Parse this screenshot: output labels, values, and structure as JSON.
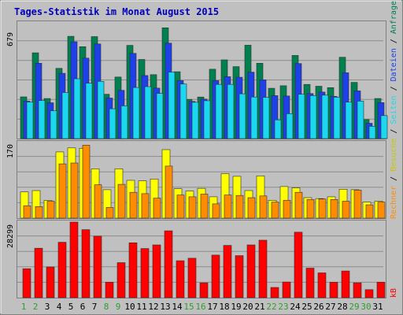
{
  "chart_data": [
    {
      "type": "bar",
      "panel": "top",
      "title": "Tages-Statistik im Monat August 2015",
      "ymax_label": "679",
      "ylim": [
        0,
        679
      ],
      "grid": true,
      "categories": [
        "1",
        "2",
        "3",
        "4",
        "5",
        "6",
        "7",
        "8",
        "9",
        "10",
        "11",
        "12",
        "13",
        "14",
        "15",
        "16",
        "17",
        "18",
        "19",
        "20",
        "21",
        "22",
        "23",
        "24",
        "25",
        "26",
        "27",
        "28",
        "29",
        "30",
        "31"
      ],
      "series": [
        {
          "name": "Anfragen",
          "color": "#007f4f",
          "values": [
            245,
            503,
            235,
            412,
            600,
            539,
            598,
            260,
            361,
            547,
            464,
            375,
            650,
            392,
            230,
            244,
            407,
            462,
            422,
            548,
            442,
            295,
            310,
            488,
            318,
            307,
            299,
            477,
            330,
            112,
            235
          ]
        },
        {
          "name": "Dateien",
          "color": "#1e40e8",
          "values": [
            220,
            442,
            210,
            383,
            568,
            472,
            555,
            238,
            283,
            500,
            370,
            296,
            560,
            340,
            218,
            232,
            340,
            363,
            360,
            390,
            345,
            252,
            250,
            440,
            264,
            273,
            248,
            386,
            280,
            90,
            211
          ]
        },
        {
          "name": "Seiten",
          "color": "#1ad8f0",
          "values": [
            215,
            223,
            163,
            270,
            351,
            325,
            336,
            175,
            192,
            300,
            305,
            265,
            390,
            320,
            213,
            222,
            318,
            318,
            263,
            244,
            242,
            110,
            146,
            260,
            252,
            255,
            243,
            214,
            220,
            72,
            135
          ]
        }
      ],
      "legend": {
        "separator": " / "
      }
    },
    {
      "type": "bar",
      "panel": "middle",
      "ymax_label": "170",
      "ylim": [
        0,
        170
      ],
      "grid": true,
      "series": [
        {
          "name": "Besuche",
          "color": "#ffff00",
          "values": [
            59,
            62,
            40,
            149,
            158,
            157,
            111,
            64,
            111,
            85,
            84,
            88,
            154,
            66,
            61,
            67,
            48,
            100,
            94,
            62,
            95,
            40,
            71,
            68,
            46,
            44,
            48,
            65,
            64,
            36,
            38
          ]
        },
        {
          "name": "Rechner",
          "color": "#ff8c00",
          "values": [
            28,
            26,
            38,
            122,
            124,
            164,
            75,
            24,
            76,
            58,
            55,
            45,
            117,
            52,
            48,
            54,
            32,
            52,
            51,
            46,
            50,
            36,
            40,
            58,
            42,
            43,
            42,
            38,
            63,
            30,
            36
          ]
        }
      ]
    },
    {
      "type": "bar",
      "panel": "bottom",
      "ymax_label": "28299",
      "ylim": [
        0,
        28299
      ],
      "grid": true,
      "series": [
        {
          "name": "kB",
          "color": "#ff0000",
          "values": [
            10860,
            18500,
            11500,
            20760,
            28299,
            25460,
            23010,
            5810,
            13130,
            20560,
            18380,
            19760,
            25030,
            13820,
            14760,
            5580,
            15940,
            19570,
            15740,
            19760,
            21530,
            3830,
            5880,
            24530,
            11040,
            9290,
            5780,
            10000,
            5580,
            3000,
            5810
          ]
        }
      ]
    }
  ],
  "xaxis": {
    "labels": [
      "1",
      "2",
      "3",
      "4",
      "5",
      "6",
      "7",
      "8",
      "9",
      "10",
      "11",
      "12",
      "13",
      "14",
      "15",
      "16",
      "17",
      "18",
      "19",
      "20",
      "21",
      "22",
      "23",
      "24",
      "25",
      "26",
      "27",
      "28",
      "29",
      "30",
      "31"
    ],
    "weekend_days": [
      1,
      2,
      8,
      9,
      15,
      16,
      22,
      23,
      29,
      30
    ],
    "weekday_color": "#000000",
    "weekend_color": "#2f9e2f"
  },
  "colors": {
    "background": "#c0c0c0",
    "plot_background": "#c0c0c0",
    "title": "#0000bb",
    "gridline": "#8c8c8c"
  }
}
